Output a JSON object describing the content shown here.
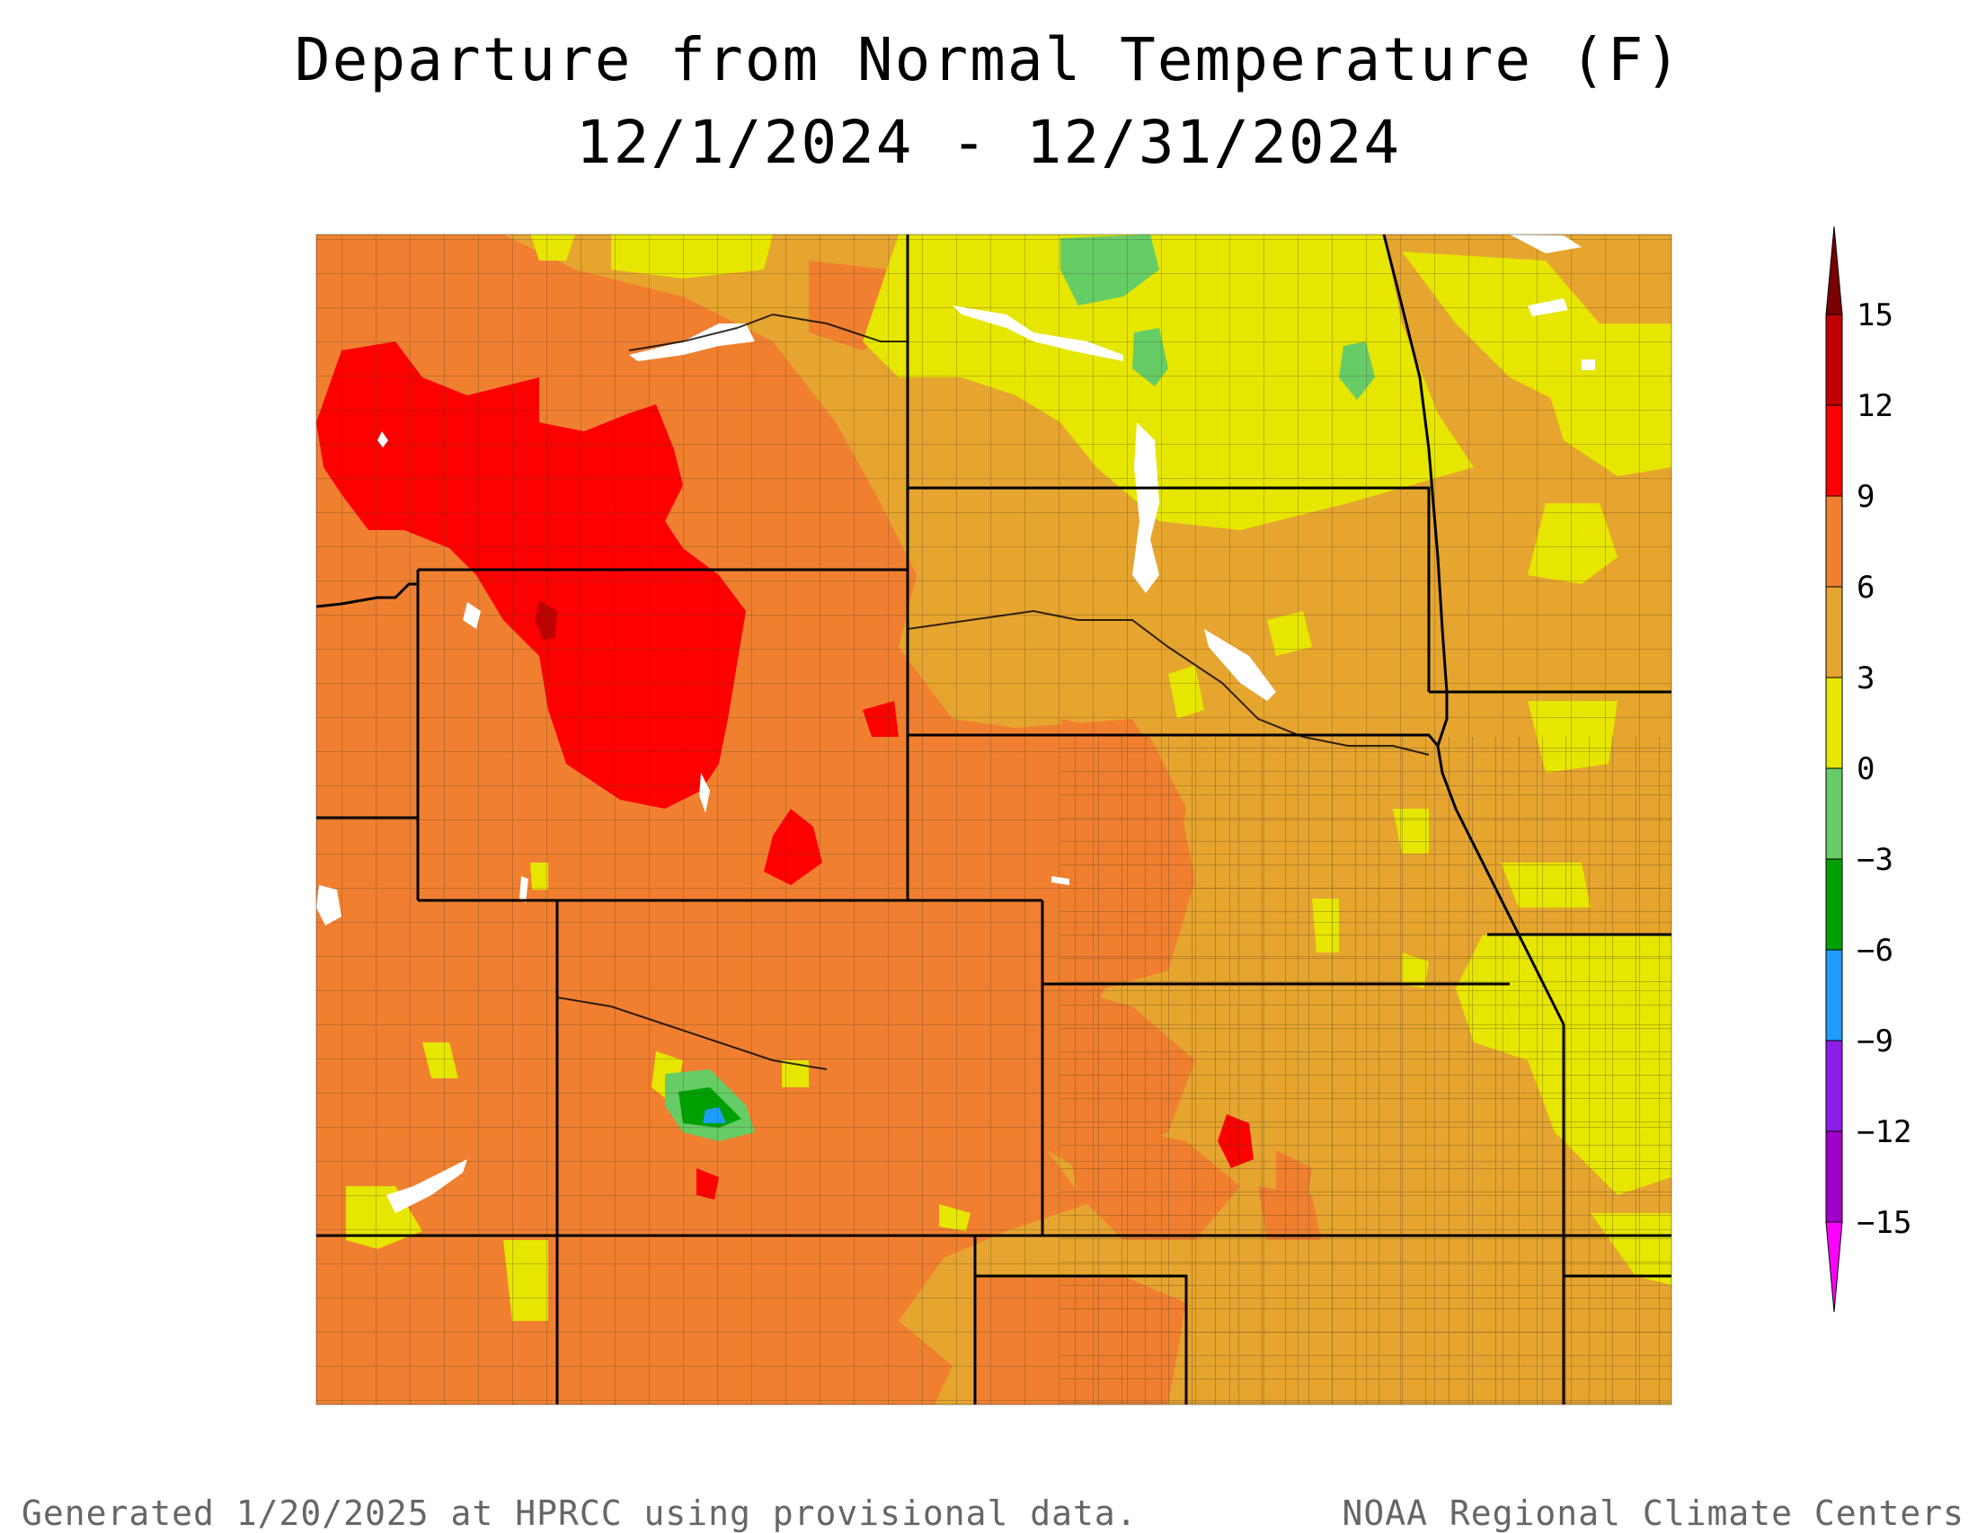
{
  "title": "Departure from Normal Temperature (F)",
  "subtitle": "12/1/2024 - 12/31/2024",
  "footer_left": "Generated 1/20/2025 at HPRCC using provisional data.",
  "footer_right": "NOAA Regional Climate Centers",
  "legend": {
    "ticks": [
      "15",
      "12",
      "9",
      "6",
      "3",
      "0",
      "−3",
      "−6",
      "−9",
      "−12",
      "−15"
    ],
    "bins": [
      {
        "range": "12 to 15",
        "color": "#c00000"
      },
      {
        "range": "9 to 12",
        "color": "#ff0000"
      },
      {
        "range": "6 to 9",
        "color": "#f08030"
      },
      {
        "range": "3 to 6",
        "color": "#e6a52f"
      },
      {
        "range": "0 to 3",
        "color": "#e6e600"
      },
      {
        "range": "-3 to 0",
        "color": "#66cc66"
      },
      {
        "range": "-6 to -3",
        "color": "#00a000"
      },
      {
        "range": "-9 to -6",
        "color": "#1e9cff"
      },
      {
        "range": "-12 to -9",
        "color": "#8c1ee6"
      },
      {
        "range": "-15 to -12",
        "color": "#a000c8"
      }
    ],
    "top_arrow_color": "#780000",
    "bottom_arrow_color": "#ff00ff"
  }
}
